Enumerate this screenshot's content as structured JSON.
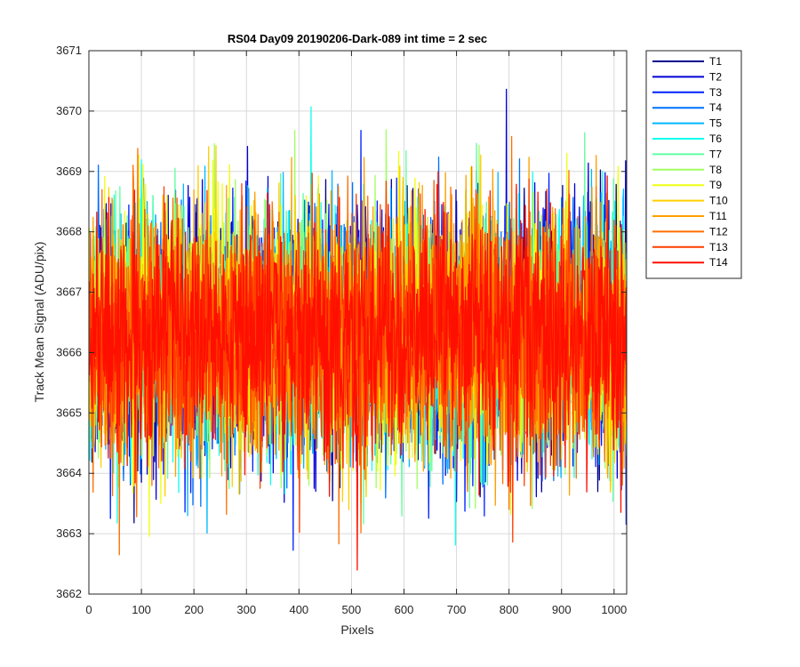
{
  "chart_data": {
    "type": "line",
    "title": "RS04 Day09 20190206-Dark-089 int time = 2 sec",
    "xlabel": "Pixels",
    "ylabel": "Track Mean Signal (ADU/pix)",
    "xlim": [
      0,
      1024
    ],
    "ylim": [
      3662,
      3671
    ],
    "x_ticks": [
      0,
      100,
      200,
      300,
      400,
      500,
      600,
      700,
      800,
      900,
      1000
    ],
    "y_ticks": [
      3662,
      3663,
      3664,
      3665,
      3666,
      3667,
      3668,
      3669,
      3670,
      3671
    ],
    "grid": true,
    "legend_position": "outside-top-right",
    "x_range": [
      1,
      1024
    ],
    "y_center": 3666.3,
    "y_noise_sd": 1.0,
    "series": [
      {
        "name": "T1",
        "color": "#00008f"
      },
      {
        "name": "T2",
        "color": "#0000d6"
      },
      {
        "name": "T3",
        "color": "#0020ff"
      },
      {
        "name": "T4",
        "color": "#0070ff"
      },
      {
        "name": "T5",
        "color": "#00b8ff"
      },
      {
        "name": "T6",
        "color": "#10ffef"
      },
      {
        "name": "T7",
        "color": "#60ffa0"
      },
      {
        "name": "T8",
        "color": "#a0ff60"
      },
      {
        "name": "T9",
        "color": "#efff10"
      },
      {
        "name": "T10",
        "color": "#ffcf00"
      },
      {
        "name": "T11",
        "color": "#ff9f00"
      },
      {
        "name": "T12",
        "color": "#ff6f00"
      },
      {
        "name": "T13",
        "color": "#ff3f00"
      },
      {
        "name": "T14",
        "color": "#ff0f00"
      }
    ]
  }
}
